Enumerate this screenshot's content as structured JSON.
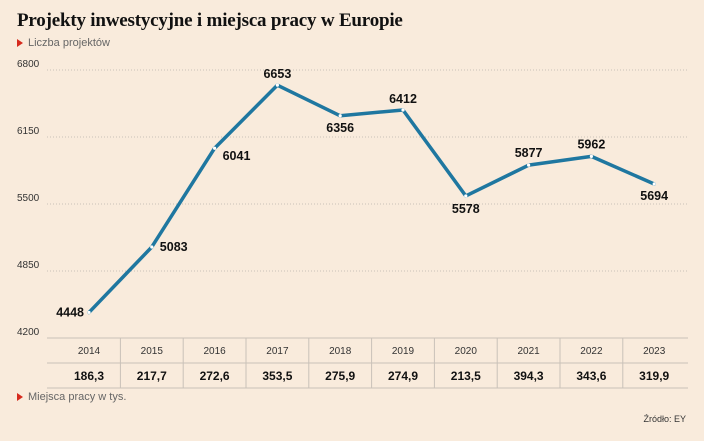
{
  "header": {
    "title": "Projekty inwestycyjne i miejsca pracy w Europie",
    "series_label": "Liczba projektów",
    "secondary_label": "Miejsca pracy w tys.",
    "source": "Źródło: EY"
  },
  "colors": {
    "line": "#1f77a0",
    "marker": "#d62a1e",
    "background": "#f9ebdc"
  },
  "chart_data": {
    "type": "line",
    "title": "Projekty inwestycyjne i miejsca pracy w Europie",
    "categories": [
      "2014",
      "2015",
      "2016",
      "2017",
      "2018",
      "2019",
      "2020",
      "2021",
      "2022",
      "2023"
    ],
    "series": [
      {
        "name": "Liczba projektów",
        "values": [
          4448,
          5083,
          6041,
          6653,
          6356,
          6412,
          5578,
          5877,
          5962,
          5694
        ]
      }
    ],
    "ylim": [
      4200,
      6800
    ],
    "yticks": [
      4200,
      4850,
      5500,
      6150,
      6800
    ],
    "grid": true,
    "table": {
      "name": "Miejsca pracy w tys.",
      "values": [
        "186,3",
        "217,7",
        "272,6",
        "353,5",
        "275,9",
        "274,9",
        "213,5",
        "394,3",
        "343,6",
        "319,9"
      ]
    }
  }
}
